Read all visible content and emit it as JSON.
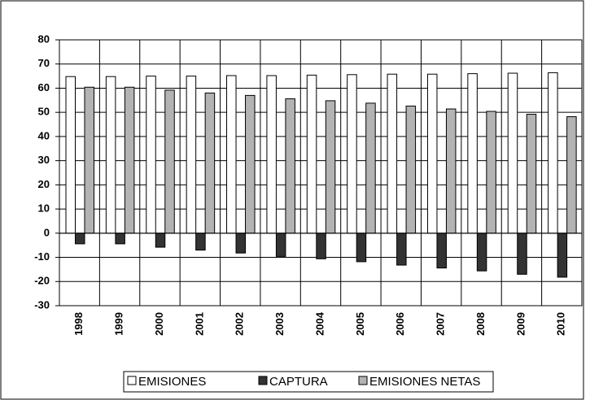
{
  "chart_data": {
    "type": "bar",
    "categories": [
      "1998",
      "1999",
      "2000",
      "2001",
      "2002",
      "2003",
      "2004",
      "2005",
      "2006",
      "2007",
      "2008",
      "2009",
      "2010"
    ],
    "series": [
      {
        "name": "EMISIONES",
        "color": "#ffffff",
        "values": [
          64.8,
          64.8,
          65,
          65,
          65.2,
          65.2,
          65.4,
          65.6,
          65.8,
          65.8,
          66,
          66.2,
          66.4
        ]
      },
      {
        "name": "CAPTURA",
        "color": "#333333",
        "values": [
          -4.4,
          -4.4,
          -5.8,
          -7,
          -8.2,
          -9.6,
          -10.6,
          -11.8,
          -13.2,
          -14.4,
          -15.6,
          -17,
          -18.2
        ]
      },
      {
        "name": "EMISIONES NETAS",
        "color": "#b3b3b3",
        "values": [
          60.4,
          60.4,
          59.2,
          58,
          57,
          55.6,
          54.8,
          53.8,
          52.6,
          51.4,
          50.4,
          49.2,
          48.2
        ]
      }
    ],
    "ylim": [
      -30,
      80
    ],
    "yticks": [
      -30,
      -20,
      -10,
      0,
      10,
      20,
      30,
      40,
      50,
      60,
      70,
      80
    ],
    "grid": true,
    "legend": "bottom"
  }
}
